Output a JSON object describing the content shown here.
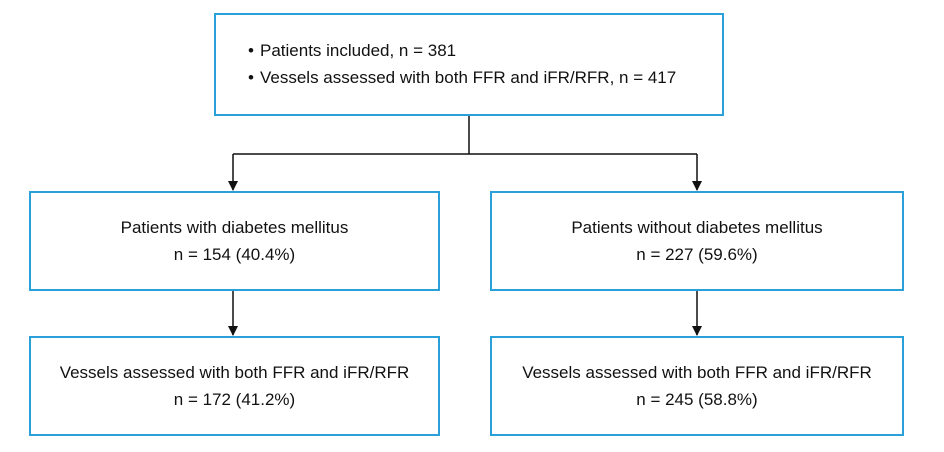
{
  "top_box": {
    "items": [
      "Patients included, n = 381",
      "Vessels assessed with both FFR and iFR/RFR, n = 417"
    ]
  },
  "left_branch": {
    "group_title": "Patients with diabetes mellitus",
    "group_count": "n = 154 (40.4%)",
    "vessels_title": "Vessels assessed with both FFR and iFR/RFR",
    "vessels_count": "n = 172 (41.2%)"
  },
  "right_branch": {
    "group_title": "Patients without diabetes mellitus",
    "group_count": "n = 227 (59.6%)",
    "vessels_title": "Vessels assessed with both FFR and iFR/RFR",
    "vessels_count": "n = 245 (58.8%)"
  },
  "colors": {
    "box_border": "#2aa0d8",
    "connector": "#111111",
    "text": "#111111"
  }
}
